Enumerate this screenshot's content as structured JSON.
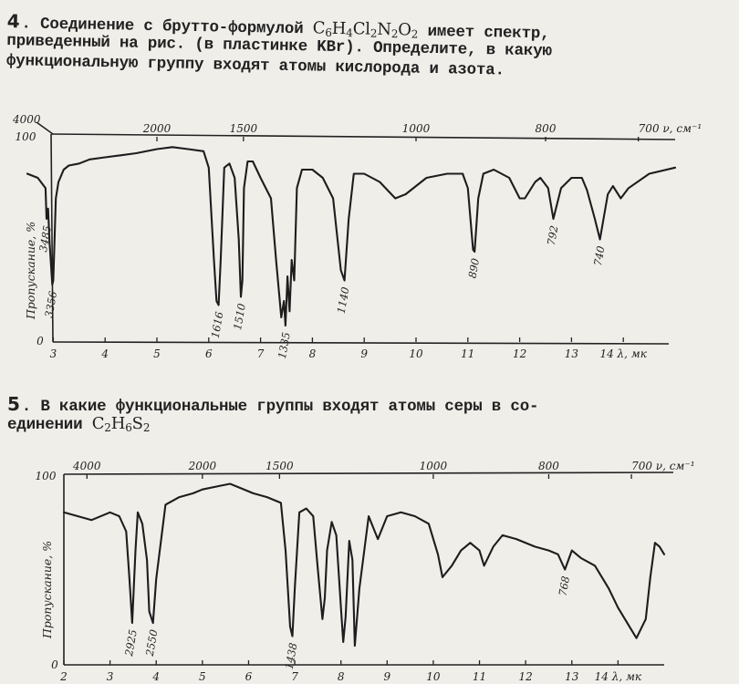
{
  "problem4": {
    "number": "4",
    "line1_pre": ". Соединение с брутто-формулой ",
    "formula": {
      "p1": "C",
      "s1": "6",
      "p2": "H",
      "s2": "4",
      "p3": "Cl",
      "s3": "2",
      "p4": "N",
      "s4": "2",
      "p5": "O",
      "s5": "2"
    },
    "line1_post": " имеет спектр,",
    "line2": "приведенный на рис.     (в пластинке KBr). Определите, в какую",
    "line3": "функциональную группу входят атомы кислорода и азота."
  },
  "problem5": {
    "number": "5",
    "line1": ". В какие функциональные группы входят атомы серы в со-",
    "line2_pre": "единении ",
    "formula": {
      "p1": "C",
      "s1": "2",
      "p2": "H",
      "s2": "6",
      "p3": "S",
      "s3": "2"
    }
  },
  "spectrum1": {
    "wavenumber_ticks": [
      "4000",
      "2000",
      "1500",
      "1000",
      "800",
      "700 ν, см⁻¹"
    ],
    "y_label": "Пропускание, %",
    "y_ticks": [
      "100",
      "0"
    ],
    "wavelength_ticks": [
      "3",
      "4",
      "5",
      "6",
      "7",
      "8",
      "9",
      "10",
      "11",
      "12",
      "13",
      "14 λ, мк"
    ],
    "peak_labels": [
      "3485",
      "3356",
      "1616",
      "1510",
      "1335",
      "1140",
      "890",
      "792",
      "740"
    ]
  },
  "spectrum2": {
    "wavenumber_ticks": [
      "4000",
      "2000",
      "1500",
      "1000",
      "800",
      "700 ν, см⁻¹"
    ],
    "y_label": "Пропускание, %",
    "y_ticks": [
      "100",
      "0"
    ],
    "wavelength_ticks": [
      "2",
      "3",
      "4",
      "5",
      "6",
      "7",
      "8",
      "9",
      "10",
      "11",
      "12",
      "13",
      "14 λ, мк"
    ],
    "peak_labels": [
      "2925",
      "2550",
      "1438",
      "768"
    ]
  },
  "chart_data": [
    {
      "type": "line",
      "title": "",
      "xlabel": "λ, мк",
      "ylabel": "Пропускание, %",
      "x_range": [
        2.5,
        15.0
      ],
      "ylim": [
        0,
        100
      ],
      "series": [
        {
          "x": [
            2.5,
            2.7,
            2.85,
            2.87,
            2.9,
            2.93,
            2.98,
            3.0,
            3.05,
            3.1,
            3.2,
            3.3,
            3.5,
            3.7,
            4.0,
            4.3,
            4.6,
            5.0,
            5.3,
            5.6,
            5.9,
            6.0,
            6.1,
            6.15,
            6.19,
            6.23,
            6.3,
            6.4,
            6.5,
            6.58,
            6.62,
            6.65,
            6.68,
            6.75,
            6.85,
            7.0,
            7.2,
            7.3,
            7.4,
            7.45,
            7.48,
            7.52,
            7.56,
            7.6,
            7.65,
            7.7,
            7.8,
            8.0,
            8.2,
            8.4,
            8.55,
            8.62,
            8.7,
            8.8,
            9.0,
            9.3,
            9.6,
            9.8,
            10.2,
            10.6,
            10.9,
            11.0,
            11.1,
            11.13,
            11.2,
            11.3,
            11.5,
            11.8,
            12.0,
            12.1,
            12.3,
            12.4,
            12.55,
            12.65,
            12.8,
            13.0,
            13.2,
            13.3,
            13.45,
            13.55,
            13.7,
            13.8,
            13.95,
            14.1,
            14.5,
            15.0
          ],
          "y": [
            82,
            80,
            75,
            60,
            65,
            48,
            28,
            30,
            70,
            78,
            84,
            86,
            87,
            89,
            90,
            91,
            92,
            94,
            95,
            94,
            93,
            85,
            40,
            20,
            18,
            40,
            85,
            87,
            80,
            50,
            22,
            30,
            75,
            88,
            88,
            80,
            70,
            40,
            12,
            20,
            8,
            32,
            15,
            40,
            30,
            75,
            84,
            84,
            80,
            70,
            35,
            30,
            60,
            82,
            82,
            78,
            70,
            72,
            80,
            82,
            82,
            75,
            45,
            44,
            70,
            82,
            84,
            80,
            70,
            70,
            78,
            80,
            75,
            60,
            75,
            80,
            80,
            74,
            60,
            50,
            72,
            76,
            70,
            75,
            82,
            85
          ]
        }
      ],
      "peak_annotations": [
        {
          "label": "3485",
          "x": 2.87,
          "y": 60
        },
        {
          "label": "3356",
          "x": 2.98,
          "y": 28
        },
        {
          "label": "1616",
          "x": 6.19,
          "y": 18
        },
        {
          "label": "1510",
          "x": 6.62,
          "y": 22
        },
        {
          "label": "1335",
          "x": 7.48,
          "y": 8
        },
        {
          "label": "1140",
          "x": 8.62,
          "y": 30
        },
        {
          "label": "890",
          "x": 11.13,
          "y": 44
        },
        {
          "label": "792",
          "x": 12.65,
          "y": 60
        },
        {
          "label": "740",
          "x": 13.55,
          "y": 50
        }
      ]
    },
    {
      "type": "line",
      "title": "",
      "xlabel": "λ, мк",
      "ylabel": "Пропускание, %",
      "x_range": [
        2.0,
        15.0
      ],
      "ylim": [
        0,
        100
      ],
      "series": [
        {
          "x": [
            2.0,
            2.3,
            2.6,
            3.0,
            3.2,
            3.35,
            3.42,
            3.48,
            3.55,
            3.6,
            3.7,
            3.8,
            3.85,
            3.93,
            4.0,
            4.2,
            4.5,
            4.8,
            5.0,
            5.4,
            5.6,
            5.8,
            6.1,
            6.4,
            6.7,
            6.8,
            6.9,
            6.95,
            7.0,
            7.1,
            7.25,
            7.4,
            7.5,
            7.6,
            7.65,
            7.7,
            7.8,
            7.9,
            8.0,
            8.05,
            8.1,
            8.18,
            8.25,
            8.3,
            8.4,
            8.6,
            8.7,
            8.8,
            9.0,
            9.3,
            9.6,
            9.9,
            10.1,
            10.2,
            10.4,
            10.6,
            10.8,
            11.0,
            11.1,
            11.3,
            11.5,
            11.8,
            12.2,
            12.5,
            12.7,
            12.85,
            13.0,
            13.2,
            13.5,
            13.8,
            14.0,
            14.3,
            14.4,
            14.6,
            14.7,
            14.8,
            14.9,
            15.0
          ],
          "y": [
            80,
            78,
            76,
            80,
            78,
            70,
            45,
            22,
            60,
            80,
            74,
            55,
            28,
            22,
            45,
            84,
            88,
            90,
            92,
            94,
            95,
            93,
            90,
            88,
            85,
            60,
            20,
            15,
            40,
            80,
            82,
            78,
            50,
            24,
            35,
            60,
            75,
            68,
            30,
            12,
            25,
            65,
            55,
            10,
            40,
            78,
            72,
            66,
            78,
            80,
            78,
            74,
            58,
            46,
            52,
            60,
            64,
            60,
            52,
            62,
            68,
            66,
            62,
            60,
            58,
            50,
            60,
            56,
            52,
            40,
            30,
            18,
            14,
            24,
            46,
            64,
            62,
            58
          ]
        }
      ],
      "peak_annotations": [
        {
          "label": "2925",
          "x": 3.48,
          "y": 22
        },
        {
          "label": "2550",
          "x": 3.93,
          "y": 22
        },
        {
          "label": "1438",
          "x": 6.95,
          "y": 15
        },
        {
          "label": "768",
          "x": 12.85,
          "y": 50
        }
      ]
    }
  ]
}
